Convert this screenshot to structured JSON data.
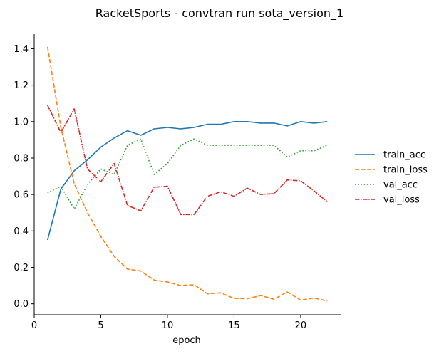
{
  "chart_data": {
    "type": "line",
    "title": "RacketSports - convtran run sota_version_1",
    "xlabel": "epoch",
    "ylabel": "",
    "xlim": [
      0,
      23
    ],
    "ylim": [
      -0.06,
      1.48
    ],
    "xticks": [
      0,
      5,
      10,
      15,
      20
    ],
    "yticks": [
      0.0,
      0.2,
      0.4,
      0.6,
      0.8,
      1.0,
      1.2,
      1.4
    ],
    "ytick_labels": [
      "0.0",
      "0.2",
      "0.4",
      "0.6",
      "0.8",
      "1.0",
      "1.2",
      "1.4"
    ],
    "grid": false,
    "legend_position": "right",
    "x": [
      1,
      2,
      3,
      4,
      5,
      6,
      7,
      8,
      9,
      10,
      11,
      12,
      13,
      14,
      15,
      16,
      17,
      18,
      19,
      20,
      21,
      22
    ],
    "series": [
      {
        "name": "train_acc",
        "color": "#1f77b4",
        "dash": "solid",
        "values": [
          0.35,
          0.63,
          0.73,
          0.79,
          0.86,
          0.91,
          0.95,
          0.925,
          0.96,
          0.968,
          0.96,
          0.968,
          0.985,
          0.985,
          1.0,
          1.0,
          0.992,
          0.992,
          0.976,
          1.0,
          0.992,
          1.0
        ]
      },
      {
        "name": "train_loss",
        "color": "#ff7f0e",
        "dash": "dashed",
        "values": [
          1.41,
          0.97,
          0.66,
          0.5,
          0.37,
          0.26,
          0.19,
          0.18,
          0.13,
          0.12,
          0.1,
          0.105,
          0.055,
          0.06,
          0.03,
          0.028,
          0.045,
          0.025,
          0.065,
          0.02,
          0.032,
          0.015
        ]
      },
      {
        "name": "val_acc",
        "color": "#2ca02c",
        "dash": "dotted",
        "values": [
          0.61,
          0.645,
          0.52,
          0.655,
          0.74,
          0.71,
          0.87,
          0.905,
          0.71,
          0.77,
          0.87,
          0.905,
          0.87,
          0.87,
          0.87,
          0.87,
          0.87,
          0.87,
          0.805,
          0.84,
          0.84,
          0.87
        ]
      },
      {
        "name": "val_loss",
        "color": "#d62728",
        "dash": "dashdot",
        "values": [
          1.09,
          0.94,
          1.07,
          0.74,
          0.67,
          0.77,
          0.54,
          0.51,
          0.64,
          0.645,
          0.49,
          0.49,
          0.59,
          0.615,
          0.59,
          0.635,
          0.6,
          0.605,
          0.68,
          0.675,
          0.62,
          0.56
        ]
      }
    ]
  }
}
